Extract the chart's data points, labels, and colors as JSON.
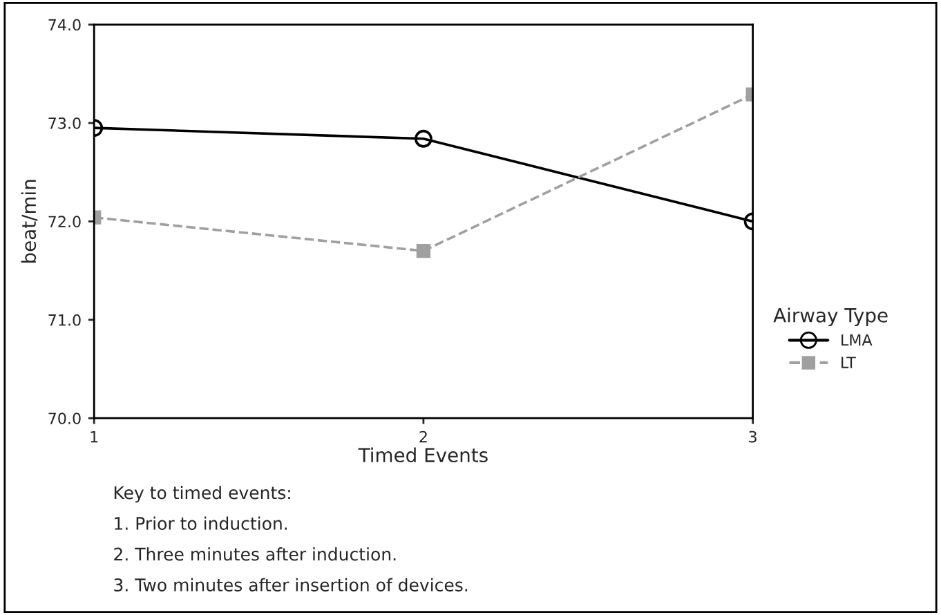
{
  "chart_data": {
    "type": "line",
    "xlabel": "Timed Events",
    "ylabel": "beat/min",
    "legend_title": "Airway Type",
    "x": [
      1,
      2,
      3
    ],
    "series": [
      {
        "name": "LMA",
        "color": "#000000",
        "values": [
          72.95,
          72.84,
          72.0
        ],
        "marker": "circle",
        "line_style": "solid"
      },
      {
        "name": "LT",
        "color": "#a0a0a0",
        "values": [
          72.04,
          71.7,
          73.29
        ],
        "marker": "square",
        "line_style": "dashed"
      }
    ],
    "xlim": [
      1,
      3
    ],
    "xticks": [
      1,
      2,
      3
    ],
    "ylim": [
      70,
      74
    ],
    "yticks": [
      {
        "value": 70,
        "label": "70.0"
      },
      {
        "value": 71,
        "label": "71.0"
      },
      {
        "value": 72,
        "label": "72.0"
      },
      {
        "value": 73,
        "label": "73.0"
      },
      {
        "value": 74,
        "label": "74.0"
      }
    ],
    "grid": false,
    "legend": "right",
    "annotations": [
      "Key to timed events:",
      "1. Prior to induction.",
      "2. Three minutes after induction.",
      "3. Two minutes after insertion of devices."
    ]
  }
}
